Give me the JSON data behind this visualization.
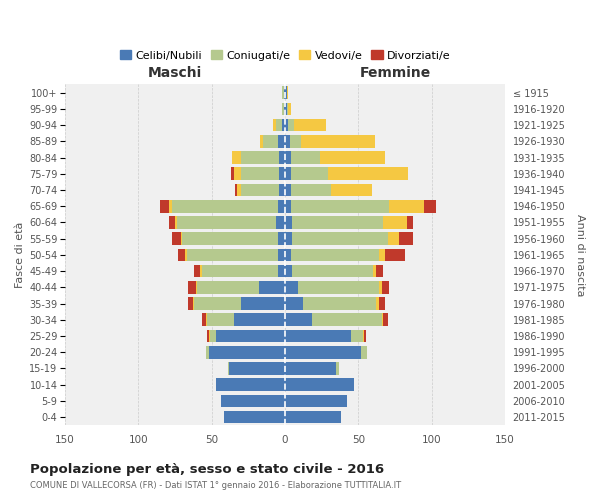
{
  "age_groups": [
    "0-4",
    "5-9",
    "10-14",
    "15-19",
    "20-24",
    "25-29",
    "30-34",
    "35-39",
    "40-44",
    "45-49",
    "50-54",
    "55-59",
    "60-64",
    "65-69",
    "70-74",
    "75-79",
    "80-84",
    "85-89",
    "90-94",
    "95-99",
    "100+"
  ],
  "birth_years": [
    "2011-2015",
    "2006-2010",
    "2001-2005",
    "1996-2000",
    "1991-1995",
    "1986-1990",
    "1981-1985",
    "1976-1980",
    "1971-1975",
    "1966-1970",
    "1961-1965",
    "1956-1960",
    "1951-1955",
    "1946-1950",
    "1941-1945",
    "1936-1940",
    "1931-1935",
    "1926-1930",
    "1921-1925",
    "1916-1920",
    "≤ 1915"
  ],
  "male": {
    "celibi": [
      42,
      44,
      47,
      38,
      52,
      47,
      35,
      30,
      18,
      5,
      5,
      5,
      6,
      5,
      4,
      4,
      4,
      5,
      2,
      1,
      1
    ],
    "coniugati": [
      0,
      0,
      0,
      1,
      2,
      4,
      18,
      32,
      42,
      52,
      62,
      65,
      68,
      72,
      26,
      26,
      26,
      10,
      4,
      1,
      1
    ],
    "vedovi": [
      0,
      0,
      0,
      0,
      0,
      1,
      1,
      1,
      1,
      1,
      1,
      1,
      1,
      2,
      3,
      5,
      6,
      2,
      2,
      0,
      0
    ],
    "divorziati": [
      0,
      0,
      0,
      0,
      0,
      1,
      3,
      3,
      5,
      4,
      5,
      6,
      4,
      6,
      1,
      2,
      0,
      0,
      0,
      0,
      0
    ]
  },
  "female": {
    "nubili": [
      38,
      42,
      47,
      35,
      52,
      45,
      18,
      12,
      9,
      5,
      4,
      5,
      5,
      4,
      4,
      4,
      4,
      3,
      2,
      1,
      1
    ],
    "coniugate": [
      0,
      0,
      0,
      2,
      4,
      8,
      48,
      50,
      55,
      55,
      60,
      65,
      62,
      67,
      27,
      25,
      20,
      8,
      4,
      1,
      0
    ],
    "vedove": [
      0,
      0,
      0,
      0,
      0,
      1,
      1,
      2,
      2,
      2,
      4,
      8,
      16,
      24,
      28,
      55,
      44,
      50,
      22,
      2,
      1
    ],
    "divorziate": [
      0,
      0,
      0,
      0,
      0,
      1,
      3,
      4,
      5,
      5,
      14,
      9,
      4,
      8,
      0,
      0,
      0,
      0,
      0,
      0,
      0
    ]
  },
  "colors": {
    "celibi": "#4a7ab5",
    "coniugati": "#b5c98e",
    "vedovi": "#f5c842",
    "divorziati": "#c0392b"
  },
  "title": "Popolazione per età, sesso e stato civile - 2016",
  "subtitle": "COMUNE DI VALLECORSA (FR) - Dati ISTAT 1° gennaio 2016 - Elaborazione TUTTITALIA.IT",
  "xlabel_left": "Maschi",
  "xlabel_right": "Femmine",
  "ylabel_left": "Fasce di età",
  "ylabel_right": "Anni di nascita",
  "legend_labels": [
    "Celibi/Nubili",
    "Coniugati/e",
    "Vedovi/e",
    "Divorziati/e"
  ],
  "xlim": 150,
  "bg_color": "#ffffff",
  "plot_bg": "#f0f0f0",
  "grid_color": "#cccccc"
}
